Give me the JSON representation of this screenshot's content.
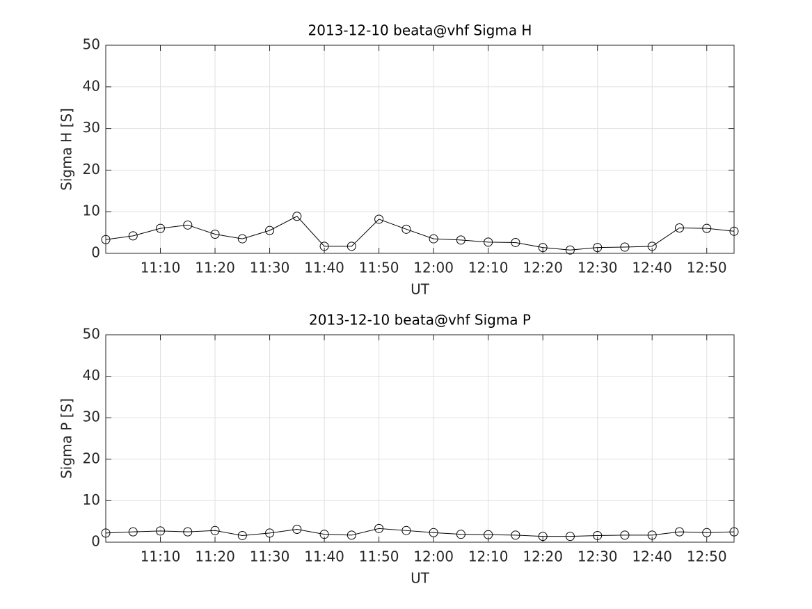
{
  "chart_data": [
    {
      "type": "line",
      "title": "2013-12-10  beata@vhf Sigma H",
      "xlabel": "UT",
      "ylabel": "Sigma H [S]",
      "x": [
        "11:00",
        "11:05",
        "11:10",
        "11:15",
        "11:20",
        "11:25",
        "11:30",
        "11:35",
        "11:40",
        "11:45",
        "11:50",
        "11:55",
        "12:00",
        "12:05",
        "12:10",
        "12:15",
        "12:20",
        "12:25",
        "12:30",
        "12:35",
        "12:40",
        "12:45",
        "12:50",
        "12:55"
      ],
      "values": [
        3.3,
        4.2,
        6.0,
        6.8,
        4.6,
        3.5,
        5.5,
        8.9,
        1.7,
        1.7,
        8.2,
        5.8,
        3.5,
        3.2,
        2.7,
        2.6,
        1.4,
        0.8,
        1.4,
        1.5,
        1.7,
        6.1,
        6.0,
        5.3
      ],
      "color": "#000000",
      "marker": "circle",
      "xlim": [
        "11:00",
        "12:55"
      ],
      "xticks": [
        "11:10",
        "11:20",
        "11:30",
        "11:40",
        "11:50",
        "12:00",
        "12:10",
        "12:20",
        "12:30",
        "12:40",
        "12:50"
      ],
      "ylim": [
        0,
        50
      ],
      "yticks": [
        0,
        10,
        20,
        30,
        40,
        50
      ],
      "grid": true
    },
    {
      "type": "line",
      "title": "2013-12-10  beata@vhf Sigma P",
      "xlabel": "UT",
      "ylabel": "Sigma P [S]",
      "x": [
        "11:00",
        "11:05",
        "11:10",
        "11:15",
        "11:20",
        "11:25",
        "11:30",
        "11:35",
        "11:40",
        "11:45",
        "11:50",
        "11:55",
        "12:00",
        "12:05",
        "12:10",
        "12:15",
        "12:20",
        "12:25",
        "12:30",
        "12:35",
        "12:40",
        "12:45",
        "12:50",
        "12:55"
      ],
      "values": [
        2.2,
        2.5,
        2.7,
        2.5,
        2.8,
        1.6,
        2.2,
        3.1,
        1.9,
        1.7,
        3.3,
        2.8,
        2.3,
        1.9,
        1.8,
        1.7,
        1.4,
        1.4,
        1.6,
        1.7,
        1.7,
        2.5,
        2.3,
        2.5
      ],
      "color": "#000000",
      "marker": "circle",
      "xlim": [
        "11:00",
        "12:55"
      ],
      "xticks": [
        "11:10",
        "11:20",
        "11:30",
        "11:40",
        "11:50",
        "12:00",
        "12:10",
        "12:20",
        "12:30",
        "12:40",
        "12:50"
      ],
      "ylim": [
        0,
        50
      ],
      "yticks": [
        0,
        10,
        20,
        30,
        40,
        50
      ],
      "grid": true
    }
  ]
}
